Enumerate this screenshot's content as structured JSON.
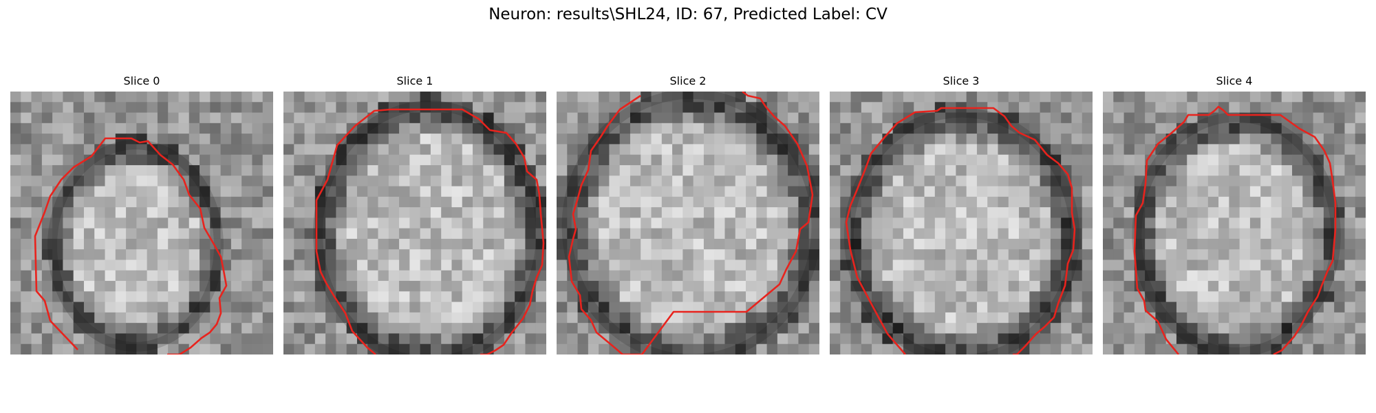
{
  "figure": {
    "title": "Neuron: results\\SHL24, ID: 67, Predicted Label: CV"
  },
  "panels": [
    {
      "title": "Slice 0"
    },
    {
      "title": "Slice 1"
    },
    {
      "title": "Slice 2"
    },
    {
      "title": "Slice 3"
    },
    {
      "title": "Slice 4"
    }
  ],
  "colors": {
    "contour": "#e8231d",
    "background": "#ffffff",
    "colormap": "gray"
  }
}
